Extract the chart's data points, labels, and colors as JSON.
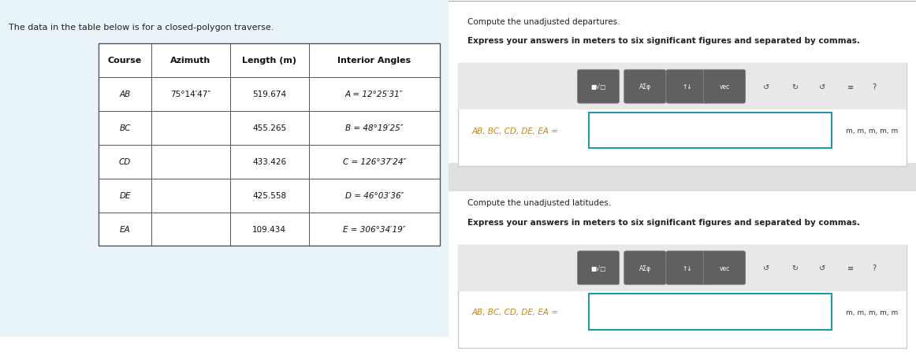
{
  "left_bg_color": "#e8f4f8",
  "right_bg_color": "#ffffff",
  "intro_text": "The data in the table below is for a closed-polygon traverse.",
  "table_header": [
    "Course",
    "Azimuth",
    "Length (m)",
    "Interior Angles"
  ],
  "table_rows": [
    [
      "AB",
      "75°14′47″",
      "519.674",
      "A = 12°25′31″"
    ],
    [
      "BC",
      "",
      "455.265",
      "B = 48°19′25″"
    ],
    [
      "CD",
      "",
      "433.426",
      "C = 126°37′24″"
    ],
    [
      "DE",
      "",
      "425.558",
      "D = 46°03′36″"
    ],
    [
      "EA",
      "",
      "109.434",
      "E = 306°34′19″"
    ]
  ],
  "section1_title": "Compute the unadjusted departures.",
  "section1_subtitle": "Express your answers in meters to six significant figures and separated by commas.",
  "section2_title": "Compute the unadjusted latitudes.",
  "section2_subtitle": "Express your answers in meters to six significant figures and separated by commas.",
  "input_label": "AB, BC, CD, DE, EA =",
  "units_label": "m, m, m, m, m",
  "box_border_color": "#2196a8",
  "box_bg_color": "#ffffff",
  "button_bg": "#606060",
  "label_color": "#c8860a",
  "intro_font_size": 8,
  "table_font_size": 8,
  "section_font_size": 7.5
}
